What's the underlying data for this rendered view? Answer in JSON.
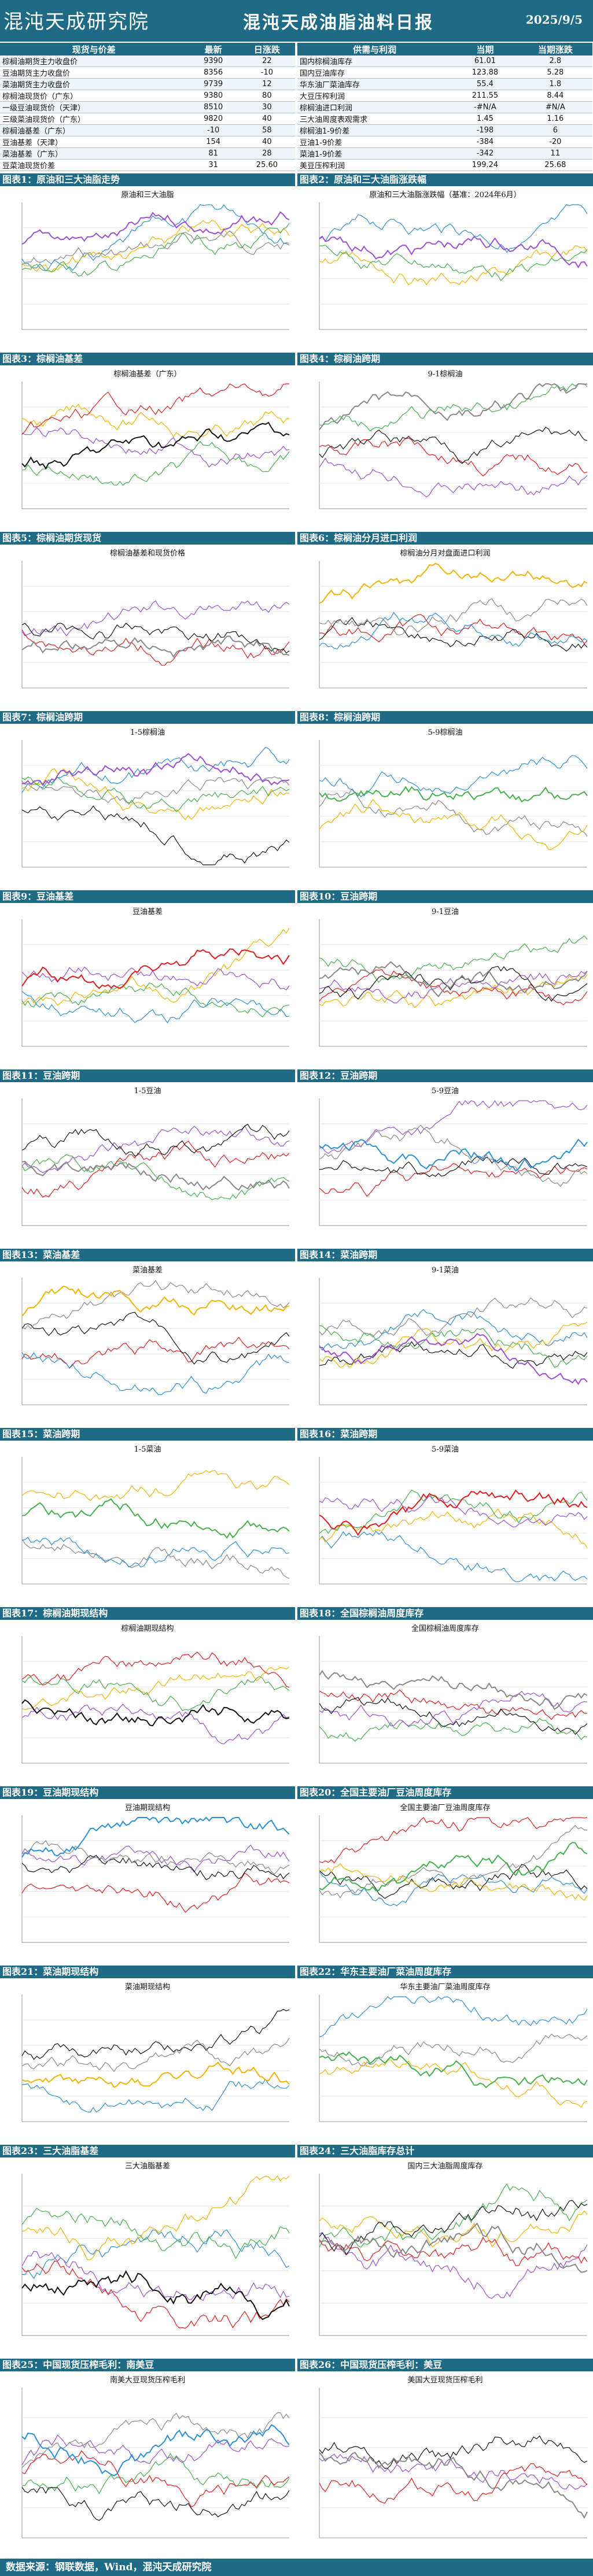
{
  "header": {
    "logo_text": "混沌天成研究院",
    "title": "混沌天成油脂油料日报",
    "date": "2025/9/5"
  },
  "spot_table": {
    "headers": [
      "现货与价差",
      "最新",
      "日涨跌"
    ],
    "rows": [
      [
        "棕榈油期货主力收盘价",
        "9390",
        "22"
      ],
      [
        "豆油期货主力收盘价",
        "8356",
        "-10"
      ],
      [
        "菜油期货主力收盘价",
        "9739",
        "12"
      ],
      [
        "棕榈油现货价（广东）",
        "9380",
        "80"
      ],
      [
        "一级豆油现货价（天津）",
        "8510",
        "30"
      ],
      [
        "三级菜油现货价（广东）",
        "9820",
        "40"
      ],
      [
        "棕榈油基差（广东）",
        "-10",
        "58"
      ],
      [
        "豆油基差（天津）",
        "154",
        "40"
      ],
      [
        "菜油基差（广东）",
        "81",
        "28"
      ],
      [
        "豆菜油现货价差",
        "31",
        "25.60"
      ]
    ]
  },
  "supply_table": {
    "headers": [
      "供需与利润",
      "当期",
      "当期涨跌"
    ],
    "rows": [
      [
        "国内棕榈油库存",
        "61.01",
        "2.8"
      ],
      [
        "国内豆油库存",
        "123.88",
        "5.28"
      ],
      [
        "华东油厂菜油库存",
        "55.4",
        "1.8"
      ],
      [
        "大豆压榨利润",
        "211.55",
        "8.44"
      ],
      [
        "棕榈油进口利润",
        "-#N/A",
        "#N/A"
      ],
      [
        "三大油周度表观需求",
        "1.45",
        "1.16"
      ],
      [
        "棕榈油1-9价差",
        "-198",
        "6"
      ],
      [
        "豆油1-9价差",
        "-384",
        "-20"
      ],
      [
        "菜油1-9价差",
        "-342",
        "11"
      ],
      [
        "美豆压榨利润",
        "199.24",
        "25.68"
      ]
    ]
  },
  "panels": [
    {
      "label": "图表1：",
      "title": "原油和三大油脂走势",
      "chart_title": "原油和三大油脂"
    },
    {
      "label": "图表2：",
      "title": "原油和三大油脂涨跌幅",
      "chart_title": "原油和三大油脂涨跌幅（基准：2024年6月）"
    },
    {
      "label": "图表3：",
      "title": "棕榈油基差",
      "chart_title": "棕榈油基差（广东）"
    },
    {
      "label": "图表4：",
      "title": "棕榈油跨期",
      "chart_title": "9-1棕榈油"
    },
    {
      "label": "图表5：",
      "title": "棕榈油期货现货",
      "chart_title": "棕榈油基差和现货价格"
    },
    {
      "label": "图表6：",
      "title": "棕榈油分月进口利润",
      "chart_title": "棕榈油分月对盘面进口利润"
    },
    {
      "label": "图表7：",
      "title": "棕榈油跨期",
      "chart_title": "1-5棕榈油"
    },
    {
      "label": "图表8：",
      "title": "棕榈油跨期",
      "chart_title": "5-9棕榈油"
    },
    {
      "label": "图表9：",
      "title": "豆油基差",
      "chart_title": "豆油基差"
    },
    {
      "label": "图表10：",
      "title": "豆油跨期",
      "chart_title": "9-1豆油"
    },
    {
      "label": "图表11：",
      "title": "豆油跨期",
      "chart_title": "1-5豆油"
    },
    {
      "label": "图表12：",
      "title": "豆油跨期",
      "chart_title": "5-9豆油"
    },
    {
      "label": "图表13：",
      "title": "菜油基差",
      "chart_title": "菜油基差"
    },
    {
      "label": "图表14：",
      "title": "菜油跨期",
      "chart_title": "9-1菜油"
    },
    {
      "label": "图表15：",
      "title": "菜油跨期",
      "chart_title": "1-5菜油"
    },
    {
      "label": "图表16：",
      "title": "菜油跨期",
      "chart_title": "5-9菜油"
    },
    {
      "label": "图表17：",
      "title": "棕榈油期现结构",
      "chart_title": "棕榈油期现结构"
    },
    {
      "label": "图表18：",
      "title": "全国棕榈油周度库存",
      "chart_title": "全国棕榈油周度库存"
    },
    {
      "label": "图表19：",
      "title": "豆油期现结构",
      "chart_title": "豆油期现结构"
    },
    {
      "label": "图表20：",
      "title": "全国主要油厂豆油周度库存",
      "chart_title": "全国主要油厂豆油周度库存"
    },
    {
      "label": "图表21：",
      "title": "菜油期现结构",
      "chart_title": "菜油期现结构"
    },
    {
      "label": "图表22：",
      "title": "华东主要油厂菜油周度库存",
      "chart_title": "华东主要油厂菜油周度库存"
    },
    {
      "label": "图表23：",
      "title": "三大油脂基差",
      "chart_title": "三大油脂基差"
    },
    {
      "label": "图表24：",
      "title": "三大油脂库存总计",
      "chart_title": "国内三大油脂周度库存"
    },
    {
      "label": "图表25：",
      "title": "中国现货压榨毛利：南美豆",
      "chart_title": "南美大豆现货压榨毛利"
    },
    {
      "label": "图表26：",
      "title": "中国现货压榨毛利：美豆",
      "chart_title": "美国大豆现货压榨毛利"
    }
  ],
  "footer": "数据来源：钢联数据，Wind，混沌天成研究院",
  "colors": {
    "brand": "#1f6b85",
    "accent_red": "#e01b1b",
    "line_black": "#111111"
  }
}
